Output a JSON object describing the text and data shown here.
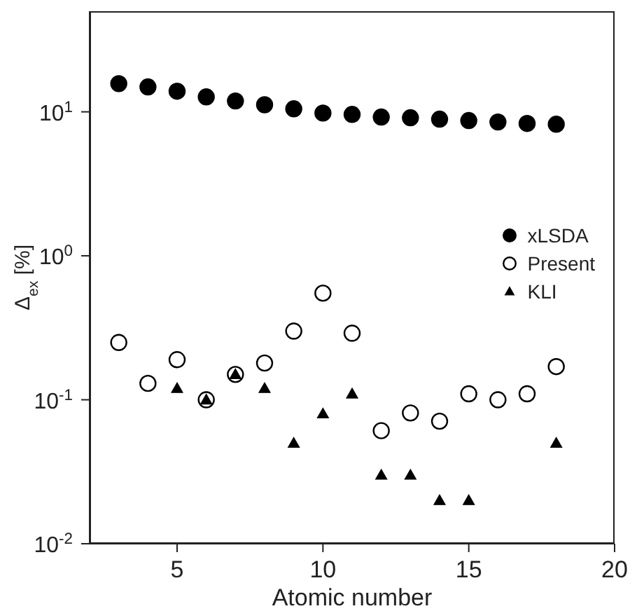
{
  "chart_data": {
    "type": "scatter",
    "xlabel": "Atomic number",
    "ylabel": "Δ$_{ex}$ [%]",
    "log": "y",
    "xlim": [
      2,
      20
    ],
    "xticks": [
      5,
      10,
      15,
      20
    ],
    "ylim": [
      0.01,
      50
    ],
    "yticks": [
      {
        "value": 0.01,
        "label": "10$^{-2}$"
      },
      {
        "value": 0.1,
        "label": "10$^{-1}$"
      },
      {
        "value": 1,
        "label": "10$^{0}$"
      },
      {
        "value": 10,
        "label": "10$^{1}$"
      }
    ],
    "grid": false,
    "legend": "right",
    "x": [
      3,
      4,
      5,
      6,
      7,
      8,
      9,
      10,
      11,
      12,
      13,
      14,
      15,
      16,
      17,
      18
    ],
    "series": [
      {
        "name": "xLSDA",
        "color": "#000000",
        "marker": "circle",
        "values": [
          15.7,
          14.9,
          13.9,
          12.7,
          11.9,
          11.2,
          10.5,
          9.8,
          9.6,
          9.2,
          9.1,
          8.9,
          8.7,
          8.5,
          8.3,
          8.2
        ]
      },
      {
        "name": "Present",
        "color": "#ffffff",
        "marker": "circle",
        "values": [
          0.25,
          0.13,
          0.19,
          0.1,
          0.15,
          0.18,
          0.3,
          0.55,
          0.29,
          0.061,
          0.081,
          0.071,
          0.11,
          0.1,
          0.11,
          0.17
        ]
      },
      {
        "name": "KLI",
        "color": "#000000",
        "marker": "triangle",
        "values": [
          null,
          null,
          0.12,
          0.1,
          0.15,
          0.12,
          0.05,
          0.08,
          0.11,
          0.03,
          0.03,
          0.02,
          0.02,
          null,
          null,
          0.05
        ]
      }
    ]
  }
}
